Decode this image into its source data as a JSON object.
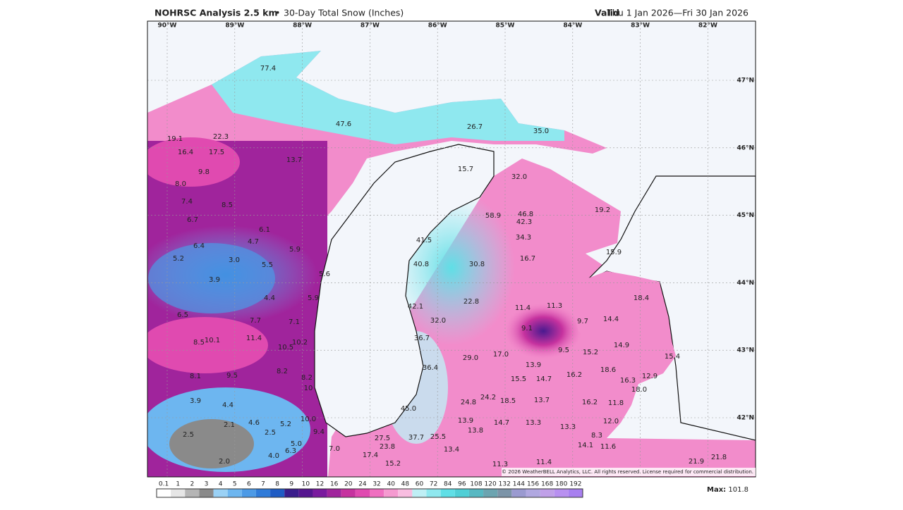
{
  "header": {
    "title": "NOHRSC Analysis 2.5 km",
    "separator": "•",
    "subtitle": "30-Day Total Snow (Inches)",
    "valid_label": "Valid",
    "valid_range": "Thu 1 Jan 2026—Fri 30 Jan 2026"
  },
  "longitudes": [
    "90°W",
    "89°W",
    "88°W",
    "87°W",
    "86°W",
    "85°W",
    "84°W",
    "83°W",
    "82°W"
  ],
  "latitudes": [
    "47°N",
    "46°N",
    "45°N",
    "44°N",
    "43°N",
    "42°N"
  ],
  "map_values": [
    "77.4",
    "47.6",
    "26.7",
    "35.0",
    "19.1",
    "22.3",
    "16.4",
    "17.5",
    "13.7",
    "15.7",
    "32.0",
    "9.8",
    "8.0",
    "7.4",
    "8.5",
    "19.2",
    "58.9",
    "46.8",
    "42.3",
    "6.7",
    "6.1",
    "34.3",
    "41.5",
    "4.7",
    "6.4",
    "5.9",
    "15.9",
    "5.2",
    "3.0",
    "16.7",
    "40.8",
    "30.8",
    "5.5",
    "5.6",
    "3.9",
    "4.4",
    "5.9",
    "18.4",
    "42.1",
    "22.8",
    "11.4",
    "11.3",
    "6.5",
    "7.7",
    "7.1",
    "32.0",
    "14.4",
    "9.1",
    "9.7",
    "8.5",
    "10.1",
    "11.4",
    "10.5",
    "10.2",
    "36.7",
    "14.9",
    "9.5",
    "15.2",
    "17.0",
    "29.0",
    "15.4",
    "13.9",
    "36.4",
    "18.6",
    "8.2",
    "8.1",
    "9.5",
    "8.2",
    "16.2",
    "12.9",
    "15.5",
    "14.7",
    "16.3",
    "10",
    "18.0",
    "3.9",
    "4.4",
    "24.2",
    "24.8",
    "18.5",
    "13.7",
    "16.2",
    "11.8",
    "45.0",
    "10.0",
    "13.9",
    "14.7",
    "13.3",
    "13.3",
    "12.0",
    "2.1",
    "4.6",
    "5.2",
    "13.8",
    "2.5",
    "2.5",
    "9.4",
    "8.3",
    "27.5",
    "37.7",
    "25.5",
    "5.0",
    "6.3",
    "7.0",
    "23.8",
    "14.1",
    "11.6",
    "13.4",
    "4.0",
    "17.4",
    "2.0",
    "15.2",
    "11.4",
    "21.9",
    "21.8",
    "11.3"
  ],
  "copyright": "© 2026 WeatherBELL Analytics, LLC. All rights reserved. License required for commercial distribution.",
  "colorbar": [
    "0.1",
    "1",
    "2",
    "3",
    "4",
    "5",
    "6",
    "7",
    "8",
    "9",
    "10",
    "12",
    "16",
    "20",
    "24",
    "32",
    "40",
    "48",
    "60",
    "72",
    "84",
    "96",
    "108",
    "120",
    "132",
    "144",
    "156",
    "168",
    "180",
    "192"
  ],
  "max": {
    "label": "Max:",
    "value": "101.8"
  }
}
